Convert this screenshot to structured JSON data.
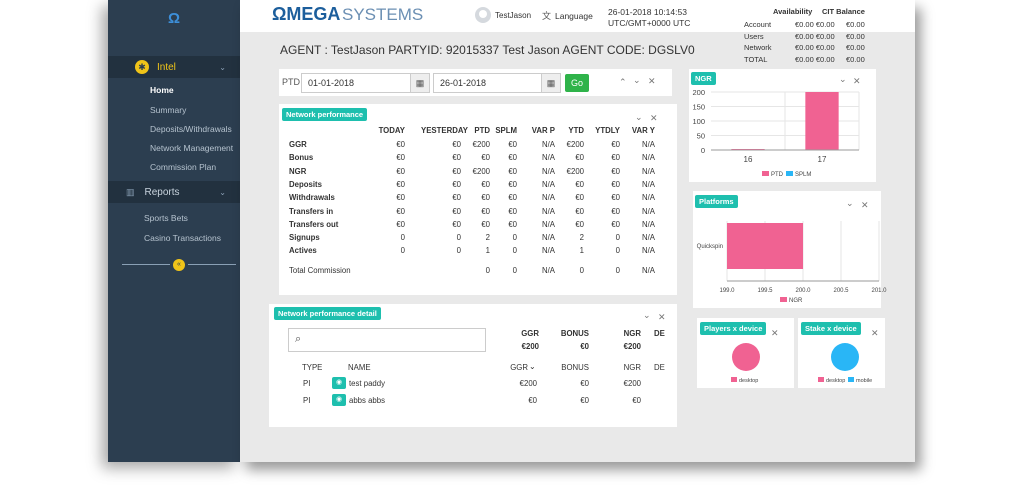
{
  "sidebar": {
    "logo": "Ω",
    "section": "Intel",
    "items": [
      "Home",
      "Summary",
      "Deposits/Withdrawals",
      "Network Management",
      "Commission Plan"
    ],
    "reports": "Reports",
    "report_items": [
      "Sports Bets",
      "Casino Transactions"
    ]
  },
  "header": {
    "brand_omega": "ΩMEGA",
    "brand_systems": "SYSTEMS",
    "user": "TestJason",
    "language": "Language",
    "datetime": "26-01-2018 10:14:53",
    "timezone": "UTC/GMT+0000 UTC"
  },
  "agent": {
    "line": "AGENT : TestJason   PARTYID: 92015337   Test Jason   AGENT CODE: DGSLV0"
  },
  "balances": {
    "head_availability": "Availability",
    "head_cit": "CIT Balance",
    "rows": [
      {
        "label": "Account",
        "avail": "€0.00 €0.00",
        "cit": "€0.00"
      },
      {
        "label": "Users",
        "avail": "€0.00 €0.00",
        "cit": "€0.00"
      },
      {
        "label": "Network",
        "avail": "€0.00 €0.00",
        "cit": "€0.00"
      },
      {
        "label": "TOTAL",
        "avail": "€0.00 €0.00",
        "cit": "€0.00"
      }
    ]
  },
  "date_filter": {
    "label": "PTD",
    "from": "01-01-2018",
    "to": "26-01-2018",
    "go": "Go"
  },
  "network_performance": {
    "title": "Network performance",
    "columns": [
      "TODAY",
      "YESTERDAY",
      "PTD",
      "SPLM",
      "VAR P",
      "YTD",
      "YTDLY",
      "VAR Y"
    ],
    "rows": [
      {
        "label": "GGR",
        "values": [
          "€0",
          "€0",
          "€200",
          "€0",
          "N/A",
          "€200",
          "€0",
          "N/A"
        ]
      },
      {
        "label": "Bonus",
        "values": [
          "€0",
          "€0",
          "€0",
          "€0",
          "N/A",
          "€0",
          "€0",
          "N/A"
        ]
      },
      {
        "label": "NGR",
        "values": [
          "€0",
          "€0",
          "€200",
          "€0",
          "N/A",
          "€200",
          "€0",
          "N/A"
        ]
      },
      {
        "label": "Deposits",
        "values": [
          "€0",
          "€0",
          "€0",
          "€0",
          "N/A",
          "€0",
          "€0",
          "N/A"
        ]
      },
      {
        "label": "Withdrawals",
        "values": [
          "€0",
          "€0",
          "€0",
          "€0",
          "N/A",
          "€0",
          "€0",
          "N/A"
        ]
      },
      {
        "label": "Transfers in",
        "values": [
          "€0",
          "€0",
          "€0",
          "€0",
          "N/A",
          "€0",
          "€0",
          "N/A"
        ]
      },
      {
        "label": "Transfers out",
        "values": [
          "€0",
          "€0",
          "€0",
          "€0",
          "N/A",
          "€0",
          "€0",
          "N/A"
        ]
      },
      {
        "label": "Signups",
        "values": [
          "0",
          "0",
          "2",
          "0",
          "N/A",
          "2",
          "0",
          "N/A"
        ]
      },
      {
        "label": "Actives",
        "values": [
          "0",
          "0",
          "1",
          "0",
          "N/A",
          "1",
          "0",
          "N/A"
        ]
      }
    ],
    "total_label": "Total Commission",
    "total_values": [
      "0",
      "0",
      "N/A",
      "0",
      "0",
      "N/A"
    ]
  },
  "network_detail": {
    "title": "Network performance detail",
    "summary_cols": [
      "GGR",
      "BONUS",
      "NGR",
      "DE"
    ],
    "summary_vals": [
      "€200",
      "€0",
      "€200"
    ],
    "cols": [
      "TYPE",
      "NAME",
      "GGR",
      "BONUS",
      "NGR",
      "DE"
    ],
    "rows": [
      {
        "type": "PI",
        "name": "test paddy",
        "ggr": "€200",
        "bonus": "€0",
        "ngr": "€200"
      },
      {
        "type": "PI",
        "name": "abbs abbs",
        "ggr": "€0",
        "bonus": "€0",
        "ngr": "€0"
      }
    ]
  },
  "widgets": {
    "ngr_title": "NGR",
    "platforms_title": "Platforms",
    "players_title": "Players x device",
    "stake_title": "Stake x device"
  },
  "chart_data": [
    {
      "type": "bar",
      "title": "NGR",
      "categories": [
        "16",
        "17"
      ],
      "series": [
        {
          "name": "PTD",
          "values": [
            0,
            200
          ]
        },
        {
          "name": "SPLM",
          "values": [
            0,
            0
          ]
        }
      ],
      "yticks": [
        "200",
        "150",
        "100",
        "50",
        "0"
      ],
      "ylim": [
        0,
        200
      ],
      "legend": "bottom",
      "colors": {
        "PTD": "#f06292",
        "SPLM": "#29b6f6"
      }
    },
    {
      "type": "bar",
      "orientation": "horizontal",
      "title": "Platforms",
      "categories": [
        "Quickspin"
      ],
      "series": [
        {
          "name": "NGR",
          "values": [
            200
          ]
        }
      ],
      "xticks": [
        "199.0",
        "199.5",
        "200.0",
        "200.5",
        "201.0"
      ],
      "xlim": [
        199,
        201
      ],
      "legend": "bottom",
      "colors": {
        "NGR": "#f06292"
      }
    },
    {
      "type": "pie",
      "title": "Players x device",
      "labels": [
        "desktop"
      ],
      "values": [
        1
      ],
      "colors": {
        "desktop": "#f06292"
      }
    },
    {
      "type": "pie",
      "title": "Stake x device",
      "labels": [
        "desktop",
        "mobile"
      ],
      "values": [
        0,
        1
      ],
      "colors": {
        "desktop": "#f06292",
        "mobile": "#29b6f6"
      }
    }
  ]
}
